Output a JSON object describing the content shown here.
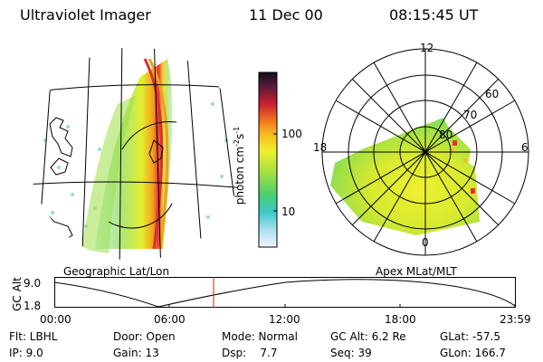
{
  "header": {
    "instrument": "Ultraviolet Imager",
    "date": "11 Dec 00",
    "time": "08:15:45 UT"
  },
  "colorbar": {
    "label": "photon cm",
    "label_sup1": "-2",
    "label_mid": "s",
    "label_sup2": "-1",
    "ticks": [
      "100",
      "10"
    ]
  },
  "left_panel": {
    "caption": "Geographic Lat/Lon"
  },
  "right_panel": {
    "caption": "Apex MLat/MLT",
    "mlt_labels": [
      "12",
      "18",
      "6",
      "0"
    ],
    "mlat_labels": [
      "60",
      "70",
      "80"
    ]
  },
  "timeline": {
    "ylabel": "GC Alt",
    "y_ticks": [
      "9.0",
      "1.8"
    ],
    "x_ticks": [
      "00:00",
      "06:00",
      "12:00",
      "18:00",
      "23:59"
    ]
  },
  "status": {
    "col1": [
      "Flt: LBHL",
      "IP:  9.0"
    ],
    "col2": [
      "Door: Open",
      "Gain: 13"
    ],
    "col3": [
      "Mode: Normal",
      "Dsp:    7.7"
    ],
    "col4": [
      "GC Alt: 6.2 Re",
      "Seq: 39"
    ],
    "col5": [
      "GLat: -57.5",
      "GLon: 166.7"
    ]
  }
}
